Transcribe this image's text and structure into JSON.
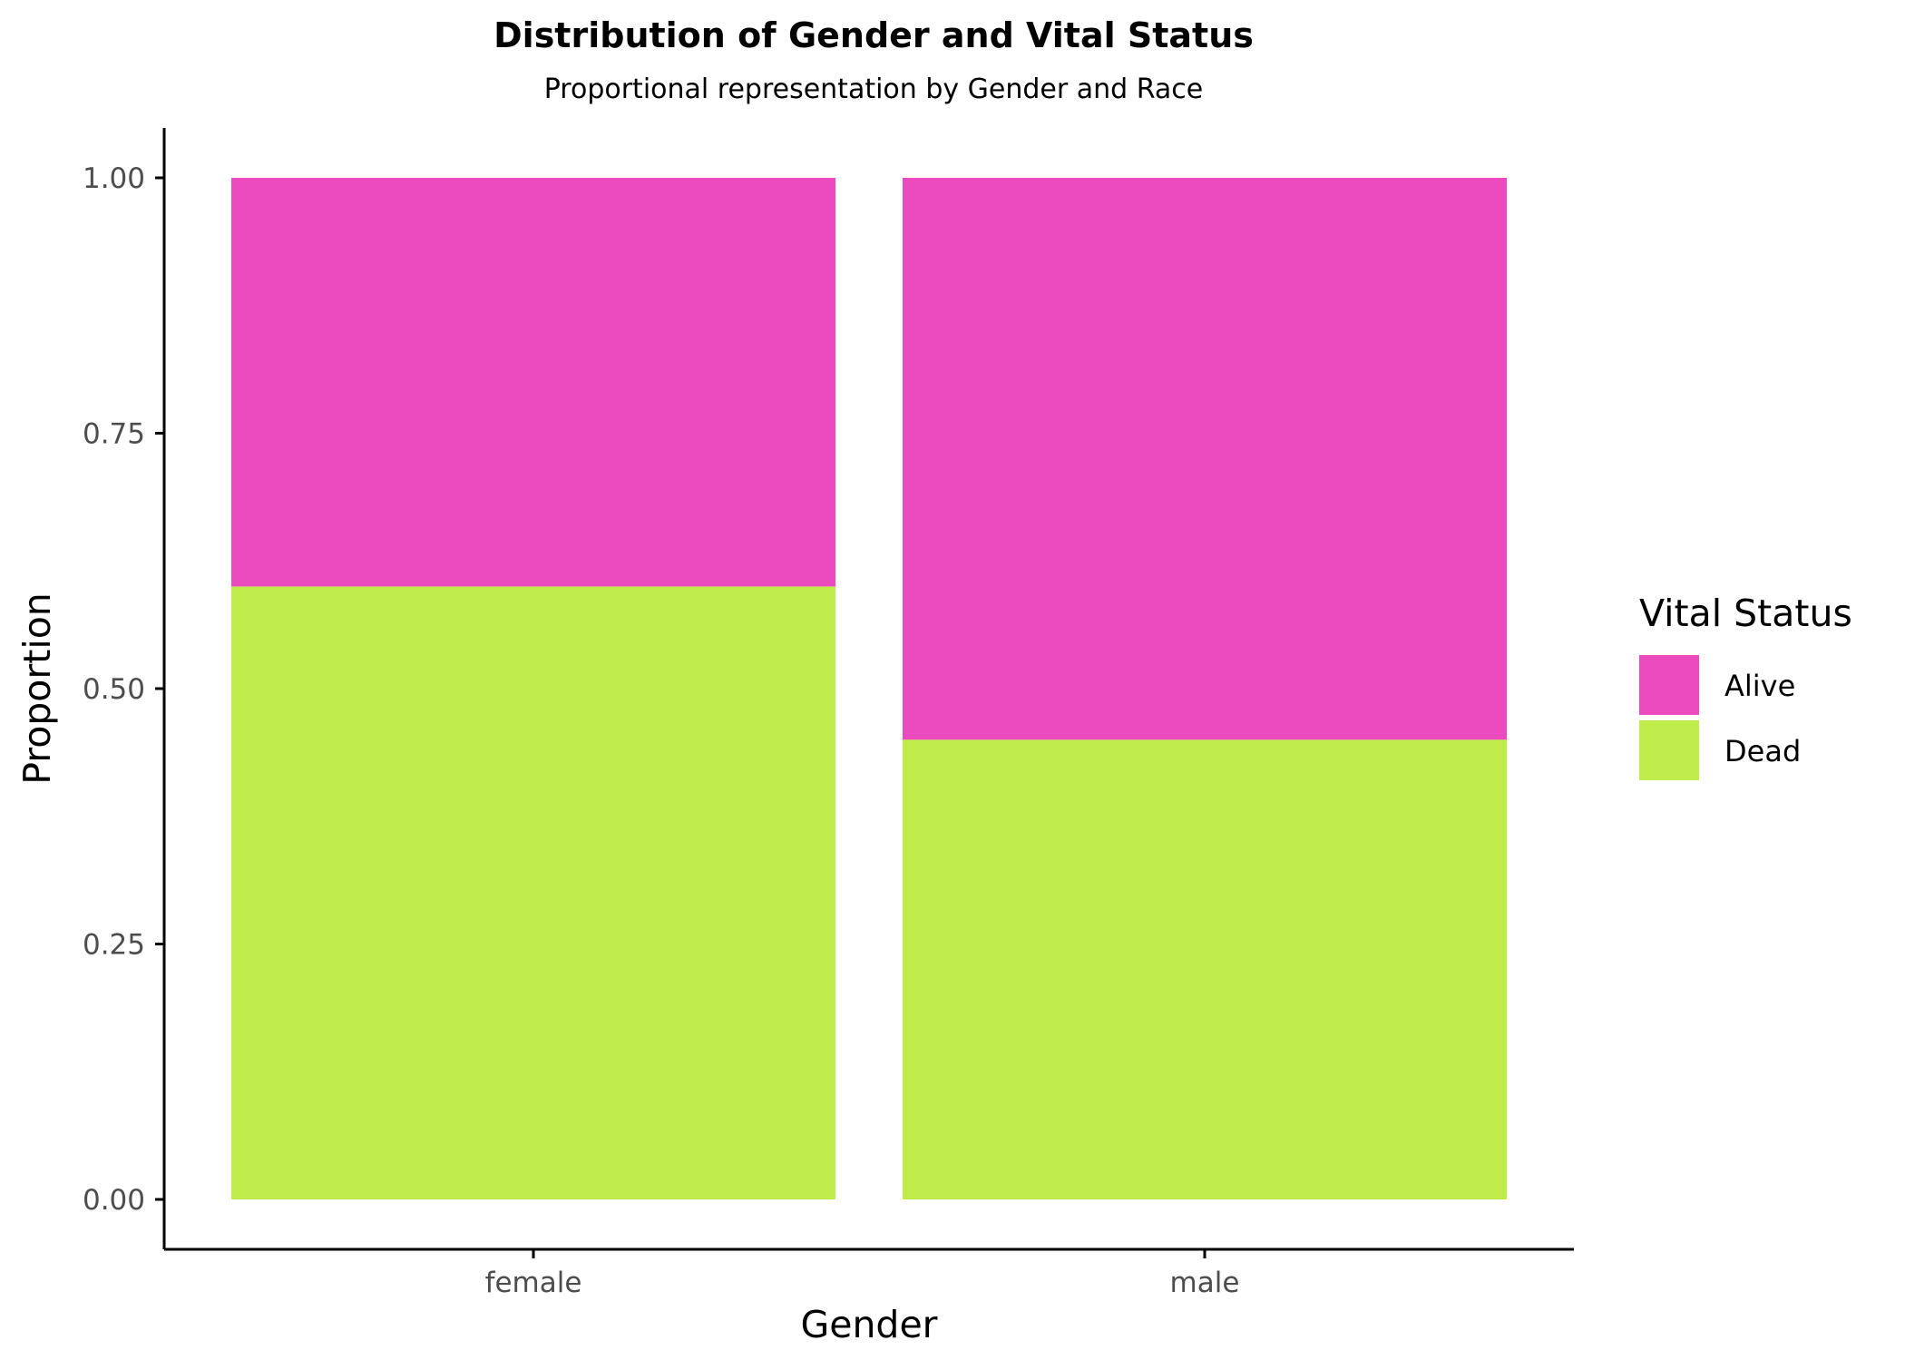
{
  "chart_data": {
    "type": "bar",
    "stacked": true,
    "title": "Distribution of Gender and Vital Status",
    "subtitle": "Proportional representation by Gender and Race",
    "xlabel": "Gender",
    "ylabel": "Proportion",
    "ylim": [
      0,
      1
    ],
    "yticks": [
      "0.00",
      "0.25",
      "0.50",
      "0.75",
      "1.00"
    ],
    "ytick_values": [
      0,
      0.25,
      0.5,
      0.75,
      1
    ],
    "categories": [
      "female",
      "male"
    ],
    "series": [
      {
        "name": "Dead",
        "color": "#BFEB4B",
        "values": [
          0.6,
          0.45
        ]
      },
      {
        "name": "Alive",
        "color": "#EB4BBF",
        "values": [
          0.4,
          0.55
        ]
      }
    ],
    "legend": {
      "title": "Vital Status",
      "position": "right",
      "entries": [
        {
          "label": "Alive",
          "color": "#EB4BBF"
        },
        {
          "label": "Dead",
          "color": "#BFEB4B"
        }
      ]
    },
    "grid": false
  }
}
